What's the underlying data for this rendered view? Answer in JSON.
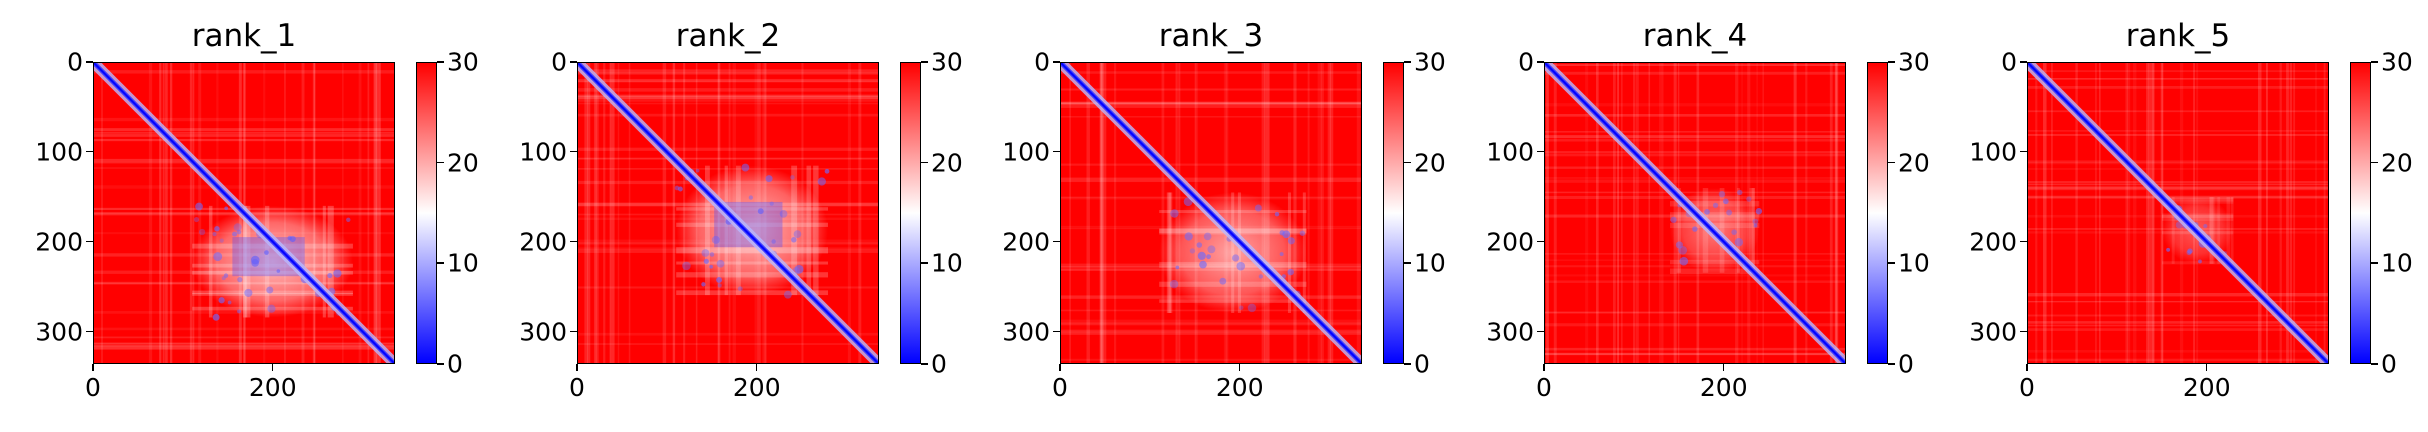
{
  "chart_data": [
    {
      "type": "heatmap",
      "title": "rank_1",
      "x_ticks": [
        "0",
        "200"
      ],
      "y_ticks": [
        "0",
        "100",
        "200",
        "300"
      ],
      "x_range": [
        0,
        336
      ],
      "y_range": [
        0,
        336
      ],
      "colorbar": {
        "ticks": [
          "0",
          "10",
          "20",
          "30"
        ],
        "range": [
          0,
          30
        ],
        "colormap": [
          "#0000ff",
          "#ffffff",
          "#ff0000"
        ]
      },
      "low_region": {
        "x": [
          110,
          290
        ],
        "y": [
          160,
          285
        ],
        "strength": 0.9
      }
    },
    {
      "type": "heatmap",
      "title": "rank_2",
      "x_ticks": [
        "0",
        "200"
      ],
      "y_ticks": [
        "0",
        "100",
        "200",
        "300"
      ],
      "x_range": [
        0,
        336
      ],
      "y_range": [
        0,
        336
      ],
      "colorbar": {
        "ticks": [
          "0",
          "10",
          "20",
          "30"
        ],
        "range": [
          0,
          30
        ],
        "colormap": [
          "#0000ff",
          "#ffffff",
          "#ff0000"
        ]
      },
      "low_region": {
        "x": [
          110,
          280
        ],
        "y": [
          115,
          260
        ],
        "strength": 0.85
      }
    },
    {
      "type": "heatmap",
      "title": "rank_3",
      "x_ticks": [
        "0",
        "200"
      ],
      "y_ticks": [
        "0",
        "100",
        "200",
        "300"
      ],
      "x_range": [
        0,
        336
      ],
      "y_range": [
        0,
        336
      ],
      "colorbar": {
        "ticks": [
          "0",
          "10",
          "20",
          "30"
        ],
        "range": [
          0,
          30
        ],
        "colormap": [
          "#0000ff",
          "#ffffff",
          "#ff0000"
        ]
      },
      "low_region": {
        "x": [
          110,
          275
        ],
        "y": [
          145,
          280
        ],
        "strength": 0.75
      }
    },
    {
      "type": "heatmap",
      "title": "rank_4",
      "x_ticks": [
        "0",
        "200"
      ],
      "y_ticks": [
        "0",
        "100",
        "200",
        "300"
      ],
      "x_range": [
        0,
        336
      ],
      "y_range": [
        0,
        336
      ],
      "colorbar": {
        "ticks": [
          "0",
          "10",
          "20",
          "30"
        ],
        "range": [
          0,
          30
        ],
        "colormap": [
          "#0000ff",
          "#ffffff",
          "#ff0000"
        ]
      },
      "low_region": {
        "x": [
          140,
          240
        ],
        "y": [
          140,
          235
        ],
        "strength": 0.55
      }
    },
    {
      "type": "heatmap",
      "title": "rank_5",
      "x_ticks": [
        "0",
        "200"
      ],
      "y_ticks": [
        "0",
        "100",
        "200",
        "300"
      ],
      "x_range": [
        0,
        336
      ],
      "y_range": [
        0,
        336
      ],
      "colorbar": {
        "ticks": [
          "0",
          "10",
          "20",
          "30"
        ],
        "range": [
          0,
          30
        ],
        "colormap": [
          "#0000ff",
          "#ffffff",
          "#ff0000"
        ]
      },
      "low_region": {
        "x": [
          150,
          230
        ],
        "y": [
          150,
          225
        ],
        "strength": 0.4
      }
    }
  ]
}
